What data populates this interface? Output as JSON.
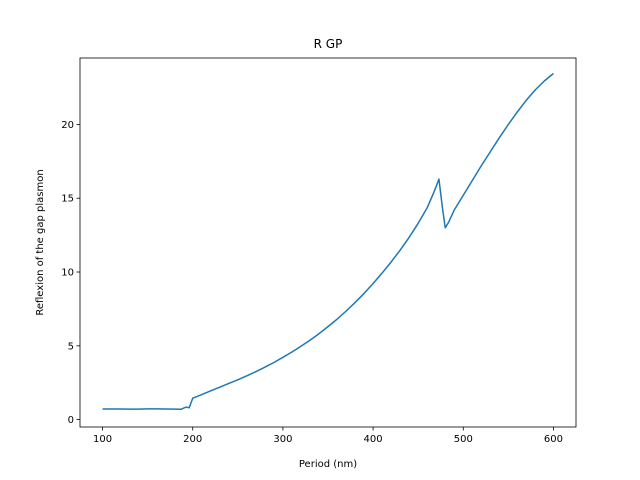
{
  "chart_data": {
    "type": "line",
    "title": "R GP",
    "xlabel": "Period (nm)",
    "ylabel": "Reflexion of the gap plasmon",
    "xlim": [
      75,
      625
    ],
    "ylim": [
      -0.5,
      24.5
    ],
    "xticks": [
      100,
      200,
      300,
      400,
      500,
      600
    ],
    "yticks": [
      0,
      5,
      10,
      15,
      20
    ],
    "grid": false,
    "color": "#1f77b4",
    "series": [
      {
        "x": [
          100,
          110,
          120,
          130,
          140,
          150,
          160,
          170,
          180,
          187,
          190,
          193,
          196,
          200,
          210,
          220,
          230,
          240,
          250,
          260,
          270,
          280,
          290,
          300,
          310,
          320,
          330,
          340,
          350,
          360,
          370,
          380,
          390,
          400,
          410,
          420,
          430,
          440,
          450,
          460,
          467,
          470,
          473,
          477,
          480,
          484,
          490,
          500,
          510,
          520,
          530,
          540,
          550,
          560,
          570,
          580,
          590,
          600
        ],
        "y": [
          0.72,
          0.72,
          0.72,
          0.71,
          0.71,
          0.73,
          0.73,
          0.72,
          0.71,
          0.7,
          0.78,
          0.85,
          0.8,
          1.45,
          1.7,
          1.95,
          2.2,
          2.45,
          2.7,
          2.97,
          3.25,
          3.55,
          3.87,
          4.22,
          4.58,
          4.97,
          5.38,
          5.82,
          6.3,
          6.8,
          7.35,
          7.93,
          8.55,
          9.22,
          9.93,
          10.68,
          11.48,
          12.35,
          13.3,
          14.35,
          15.35,
          15.8,
          16.3,
          14.3,
          13.0,
          13.4,
          14.2,
          15.2,
          16.2,
          17.2,
          18.15,
          19.1,
          20.0,
          20.85,
          21.65,
          22.35,
          22.95,
          23.45
        ]
      }
    ]
  }
}
